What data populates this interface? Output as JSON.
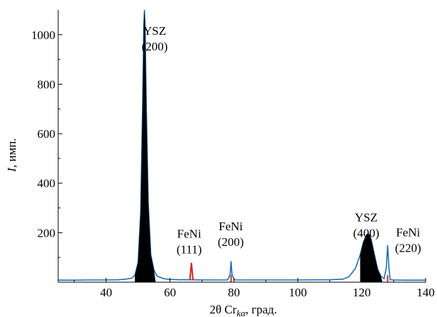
{
  "chart_data": {
    "type": "line",
    "xlabel_prefix": "2θ Cr",
    "xlabel_sub": "kα",
    "xlabel_suffix": ", град.",
    "ylabel_var": "I",
    "ylabel_unit": ", имп.",
    "xlim": [
      25,
      140
    ],
    "ylim": [
      0,
      1100
    ],
    "x_ticks": [
      40,
      60,
      80,
      100,
      120,
      140
    ],
    "y_ticks": [
      200,
      400,
      600,
      800,
      1000
    ],
    "grid": false,
    "series": [
      {
        "color": "#1f6fb4",
        "x": [
          25,
          30,
          35,
          40,
          44,
          46,
          48,
          49,
          50,
          50.8,
          51.4,
          51.8,
          52,
          52.2,
          52.6,
          53.2,
          54,
          55,
          56,
          58,
          60,
          63,
          66,
          70,
          74,
          78,
          78.8,
          79.1,
          79.4,
          80.2,
          84,
          90,
          100,
          110,
          114,
          116,
          118,
          119.5,
          120.5,
          121.5,
          122,
          122.5,
          123,
          124,
          125,
          126,
          127,
          127.7,
          128.1,
          128.5,
          128.9,
          130,
          133,
          136,
          140
        ],
        "y": [
          8,
          8,
          9,
          9,
          10,
          12,
          16,
          28,
          80,
          280,
          700,
          1040,
          1100,
          1040,
          700,
          320,
          110,
          48,
          24,
          14,
          11,
          10,
          10,
          9,
          9,
          9,
          30,
          85,
          30,
          9,
          9,
          9,
          9,
          10,
          12,
          22,
          55,
          110,
          162,
          192,
          196,
          190,
          170,
          110,
          52,
          24,
          14,
          60,
          150,
          60,
          10,
          9,
          8,
          8,
          8
        ]
      },
      {
        "color": "#d62728",
        "x": [
          66.2,
          66.7,
          67.2
        ],
        "y": [
          8,
          78,
          8
        ]
      }
    ],
    "annotations": [
      {
        "label": "YSZ",
        "sub": "(200)",
        "x": 55.2,
        "y": 1000
      },
      {
        "label": "FeNi",
        "sub": "(111)",
        "x": 66,
        "y": 180
      },
      {
        "label": "FeNi",
        "sub": "(200)",
        "x": 79,
        "y": 210
      },
      {
        "label": "YSZ",
        "sub": "(400)",
        "x": 121.4,
        "y": 245
      },
      {
        "label": "FeNi",
        "sub": "(220)",
        "x": 134.5,
        "y": 185
      }
    ]
  }
}
